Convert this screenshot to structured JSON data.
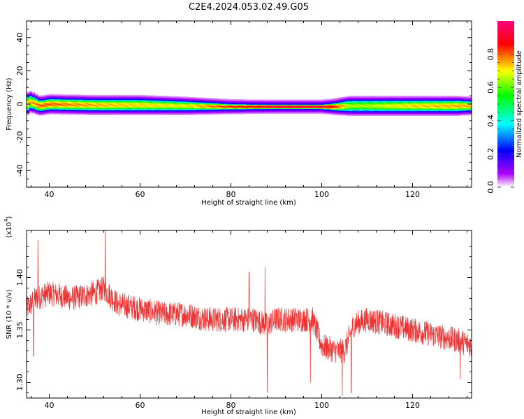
{
  "title": "C2E4.2024.053.02.49.G05",
  "chart_data": [
    {
      "type": "heatmap",
      "xlabel": "Height of straight line (km)",
      "ylabel": "Frequency (Hz)",
      "xlim": [
        35,
        133
      ],
      "ylim": [
        -50,
        50
      ],
      "xticks": [
        40,
        60,
        80,
        100,
        120
      ],
      "yticks": [
        -40,
        -20,
        0,
        20,
        40
      ],
      "colorbar": {
        "label": "Normalized spectral amplitude",
        "range": [
          0,
          1
        ],
        "ticks": [
          0.0,
          0.2,
          0.4,
          0.6,
          0.8
        ],
        "tick_labels": [
          "0.0",
          "0.2",
          "0.4",
          "0.6",
          "0.8"
        ],
        "colors": [
          "#ffffff",
          "#b000ff",
          "#0000ff",
          "#00ffff",
          "#00ff00",
          "#ffff00",
          "#ff0000",
          "#ff0080"
        ]
      },
      "ridge": {
        "x": [
          35,
          36,
          38,
          40,
          50,
          60,
          70,
          80,
          85,
          90,
          95,
          100,
          103,
          106,
          110,
          120,
          130,
          133
        ],
        "frequency_hz": [
          0,
          1.5,
          -1,
          0,
          -0.5,
          -0.5,
          -1,
          -1.5,
          -1.5,
          -1.5,
          -1.5,
          -1.5,
          -1.5,
          -1,
          -1,
          -1,
          -1,
          -1
        ],
        "halfwidth_hz": [
          4,
          3.5,
          3,
          3,
          3,
          3,
          2.5,
          1.5,
          1.3,
          1.2,
          1.2,
          1.2,
          2,
          3,
          3,
          3,
          3,
          2.5
        ],
        "peak_amplitude": [
          0.7,
          0.75,
          0.8,
          0.8,
          0.75,
          0.72,
          0.7,
          0.85,
          0.9,
          0.95,
          0.95,
          0.95,
          0.85,
          0.65,
          0.65,
          0.72,
          0.75,
          0.75
        ]
      }
    },
    {
      "type": "line",
      "xlabel": "Height of straight line (km)",
      "ylabel": "SNR (10 * v/v)",
      "y_multiplier": "(x10^4)",
      "y_multiplier_base": "(x10",
      "y_multiplier_exp": "4",
      "xlim": [
        35,
        133
      ],
      "ylim": [
        1.285,
        1.445
      ],
      "xticks": [
        40,
        60,
        80,
        100,
        120
      ],
      "yticks": [
        1.3,
        1.35,
        1.4
      ],
      "ytick_labels": [
        "1.30",
        "1.35",
        "1.40"
      ],
      "line_color": "#f03232",
      "trend": {
        "x": [
          35,
          37,
          40,
          45,
          50,
          52,
          55,
          60,
          65,
          70,
          75,
          80,
          85,
          88,
          90,
          95,
          98,
          100,
          103,
          105,
          107,
          110,
          115,
          120,
          125,
          130,
          133
        ],
        "y": [
          1.37,
          1.38,
          1.385,
          1.38,
          1.385,
          1.39,
          1.375,
          1.37,
          1.365,
          1.365,
          1.36,
          1.36,
          1.36,
          1.355,
          1.36,
          1.36,
          1.36,
          1.335,
          1.33,
          1.33,
          1.355,
          1.36,
          1.355,
          1.35,
          1.345,
          1.34,
          1.335
        ]
      },
      "noise_amplitude": 0.012,
      "dips": [
        {
          "x": 88,
          "y": 1.29
        },
        {
          "x": 97.5,
          "y": 1.3
        },
        {
          "x": 104.5,
          "y": 1.287
        },
        {
          "x": 106.5,
          "y": 1.29
        },
        {
          "x": 36.5,
          "y": 1.325
        },
        {
          "x": 130.5,
          "y": 1.303
        }
      ],
      "spikes": [
        {
          "x": 52.3,
          "y": 1.445
        },
        {
          "x": 37.5,
          "y": 1.436
        },
        {
          "x": 87.5,
          "y": 1.41
        },
        {
          "x": 84,
          "y": 1.405
        }
      ]
    }
  ]
}
